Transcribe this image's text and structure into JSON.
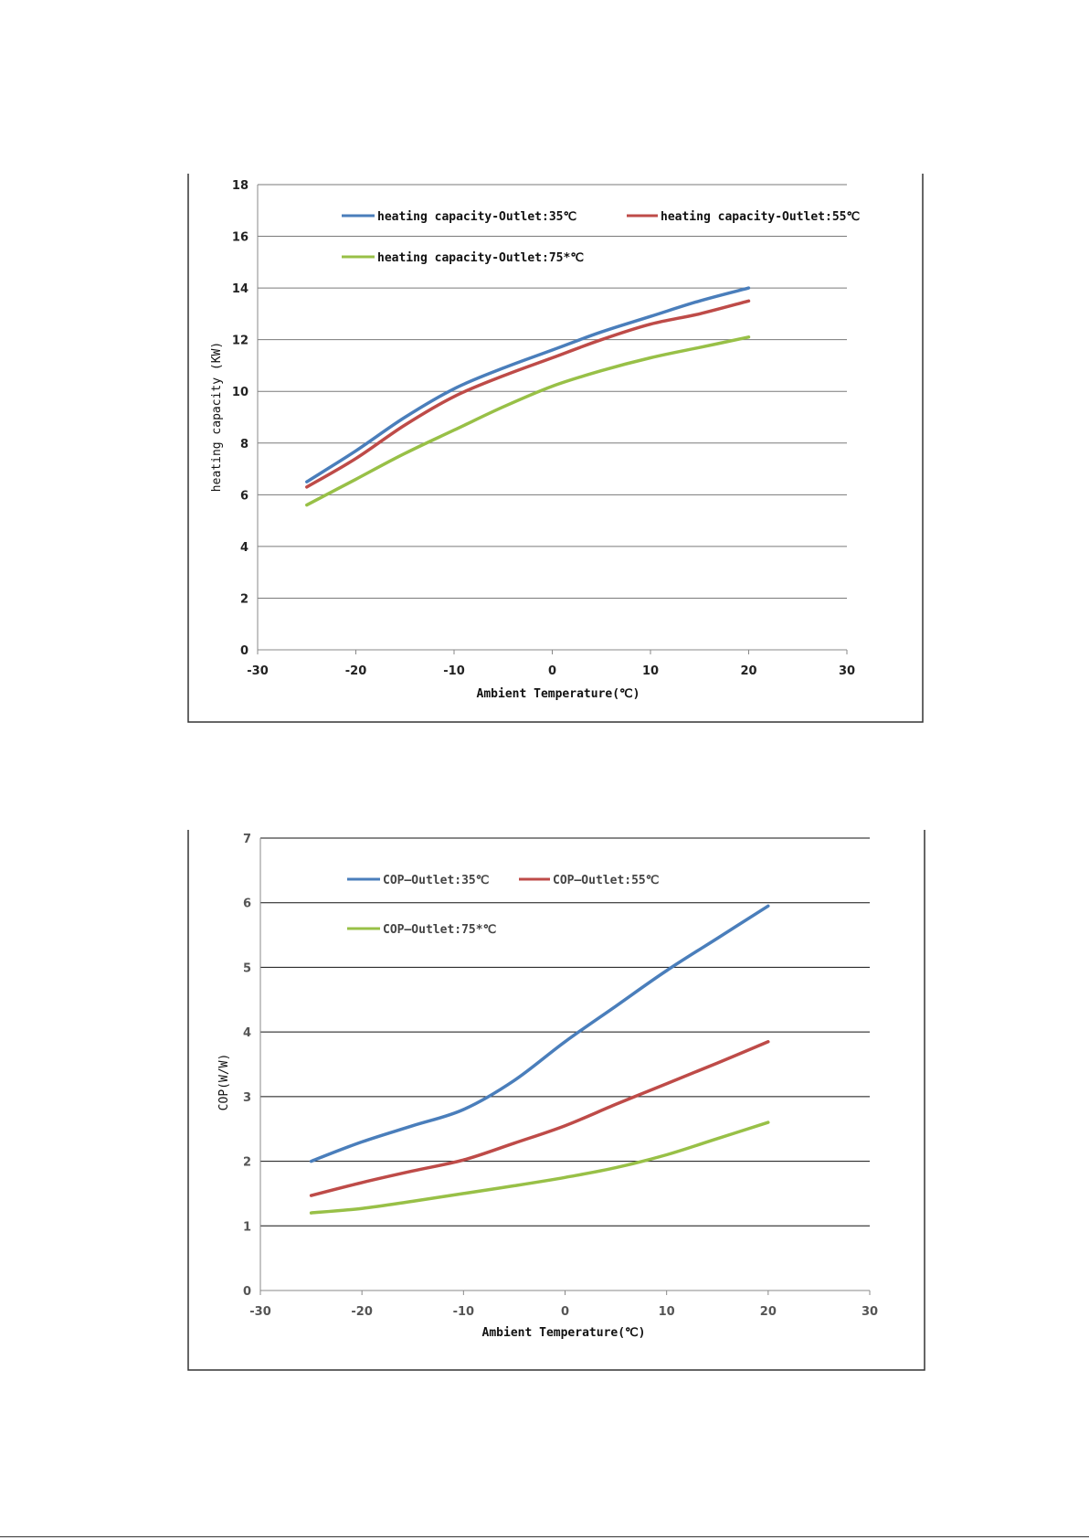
{
  "colors": {
    "series_35": "#4a7ebb",
    "series_55": "#be4b48",
    "series_75": "#98c047"
  },
  "chart_data": [
    {
      "type": "line",
      "title": "",
      "xlabel": "Ambient Temperature(℃)",
      "ylabel": "heating capacity (KW)",
      "xlim": [
        -30,
        30
      ],
      "ylim": [
        0,
        18
      ],
      "x_ticks": [
        -30,
        -20,
        -10,
        0,
        10,
        20,
        30
      ],
      "y_ticks": [
        0,
        2,
        4,
        6,
        8,
        10,
        12,
        14,
        16,
        18
      ],
      "grid": "horizontal",
      "legend_position": "top",
      "series": [
        {
          "name": "heating capacity-Outlet:35℃",
          "color": "#4a7ebb",
          "x": [
            -25,
            -20,
            -15,
            -10,
            -5,
            0,
            5,
            10,
            15,
            20
          ],
          "y": [
            6.5,
            7.7,
            9.0,
            10.1,
            10.9,
            11.6,
            12.3,
            12.9,
            13.5,
            14.0
          ]
        },
        {
          "name": "heating capacity-Outlet:55℃",
          "color": "#be4b48",
          "x": [
            -25,
            -20,
            -15,
            -10,
            -5,
            0,
            5,
            10,
            15,
            20
          ],
          "y": [
            6.3,
            7.4,
            8.7,
            9.8,
            10.6,
            11.3,
            12.0,
            12.6,
            13.0,
            13.5
          ]
        },
        {
          "name": "heating capacity-Outlet:75*℃",
          "color": "#98c047",
          "x": [
            -25,
            -20,
            -15,
            -10,
            -5,
            0,
            5,
            10,
            15,
            20
          ],
          "y": [
            5.6,
            6.6,
            7.6,
            8.5,
            9.4,
            10.2,
            10.8,
            11.3,
            11.7,
            12.1
          ]
        }
      ]
    },
    {
      "type": "line",
      "title": "",
      "xlabel": "Ambient Temperature(℃)",
      "ylabel": "COP(W/W)",
      "xlim": [
        -30,
        30
      ],
      "ylim": [
        0,
        7
      ],
      "x_ticks": [
        -30,
        -20,
        -10,
        0,
        10,
        20,
        30
      ],
      "y_ticks": [
        0,
        1,
        2,
        3,
        4,
        5,
        6,
        7
      ],
      "grid": "horizontal",
      "legend_position": "top",
      "series": [
        {
          "name": "COP—Outlet:35℃",
          "color": "#4a7ebb",
          "x": [
            -25,
            -20,
            -15,
            -10,
            -5,
            0,
            5,
            10,
            15,
            20
          ],
          "y": [
            2.0,
            2.3,
            2.55,
            2.8,
            3.25,
            3.85,
            4.4,
            4.95,
            5.45,
            5.95
          ]
        },
        {
          "name": "COP—Outlet:55℃",
          "color": "#be4b48",
          "x": [
            -25,
            -20,
            -15,
            -10,
            -5,
            0,
            5,
            10,
            15,
            20
          ],
          "y": [
            1.47,
            1.67,
            1.85,
            2.02,
            2.28,
            2.55,
            2.88,
            3.2,
            3.52,
            3.85
          ]
        },
        {
          "name": "COP—Outlet:75*℃",
          "color": "#98c047",
          "x": [
            -25,
            -20,
            -15,
            -10,
            -5,
            0,
            5,
            10,
            15,
            20
          ],
          "y": [
            1.2,
            1.27,
            1.38,
            1.5,
            1.62,
            1.75,
            1.9,
            2.1,
            2.35,
            2.6
          ]
        }
      ]
    }
  ]
}
